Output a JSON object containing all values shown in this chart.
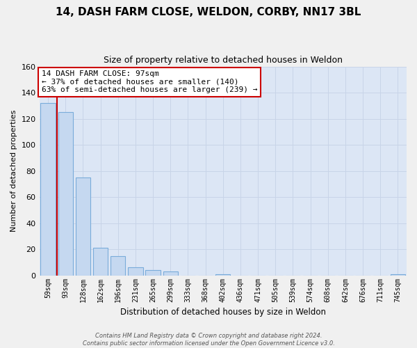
{
  "title": "14, DASH FARM CLOSE, WELDON, CORBY, NN17 3BL",
  "subtitle": "Size of property relative to detached houses in Weldon",
  "xlabel": "Distribution of detached houses by size in Weldon",
  "ylabel": "Number of detached properties",
  "bar_labels": [
    "59sqm",
    "93sqm",
    "128sqm",
    "162sqm",
    "196sqm",
    "231sqm",
    "265sqm",
    "299sqm",
    "333sqm",
    "368sqm",
    "402sqm",
    "436sqm",
    "471sqm",
    "505sqm",
    "539sqm",
    "574sqm",
    "608sqm",
    "642sqm",
    "676sqm",
    "711sqm",
    "745sqm"
  ],
  "bar_values": [
    132,
    125,
    75,
    21,
    15,
    6,
    4,
    3,
    0,
    0,
    1,
    0,
    0,
    0,
    0,
    0,
    0,
    0,
    0,
    0,
    1
  ],
  "bar_color": "#c5d8f0",
  "bar_edge_color": "#7aacda",
  "highlight_line_color": "#cc0000",
  "ylim": [
    0,
    160
  ],
  "yticks": [
    0,
    20,
    40,
    60,
    80,
    100,
    120,
    140,
    160
  ],
  "annotation_title": "14 DASH FARM CLOSE: 97sqm",
  "annotation_line1": "← 37% of detached houses are smaller (140)",
  "annotation_line2": "63% of semi-detached houses are larger (239) →",
  "annotation_box_facecolor": "#ffffff",
  "annotation_box_edgecolor": "#cc0000",
  "grid_color": "#c8d4e8",
  "background_color": "#dce6f5",
  "fig_background_color": "#f0f0f0",
  "footer_line1": "Contains HM Land Registry data © Crown copyright and database right 2024.",
  "footer_line2": "Contains public sector information licensed under the Open Government Licence v3.0."
}
